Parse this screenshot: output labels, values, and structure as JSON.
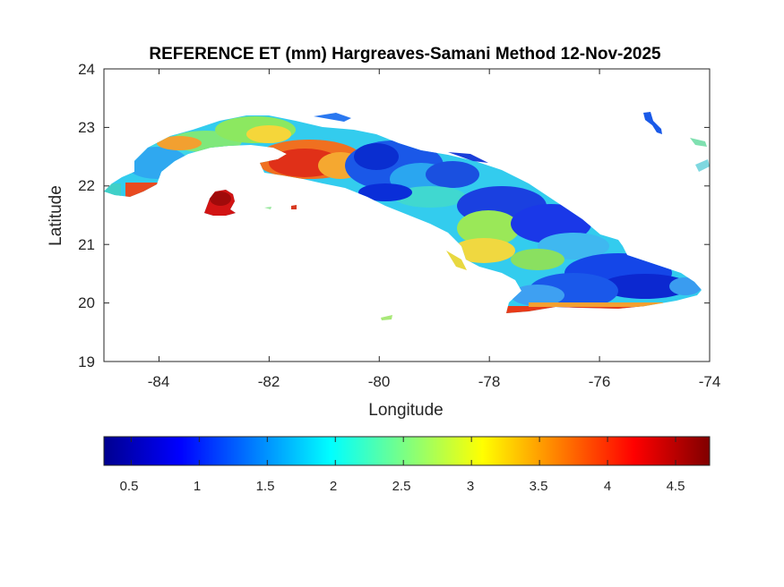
{
  "map": {
    "title": "REFERENCE ET (mm) Hargreaves-Samani Method  12-Nov-2025",
    "xlabel": "Longitude",
    "ylabel": "Latitude",
    "xlim": [
      -85,
      -74
    ],
    "ylim": [
      19,
      24
    ],
    "x_ticks": [
      "-84",
      "-82",
      "-80",
      "-78",
      "-76",
      "-74"
    ],
    "x_tick_values": [
      -84,
      -82,
      -80,
      -78,
      -76,
      -74
    ],
    "y_ticks": [
      "19",
      "20",
      "21",
      "22",
      "23",
      "24"
    ],
    "y_tick_values": [
      19,
      20,
      21,
      22,
      23,
      24
    ],
    "colorbar": {
      "colormap": "jet",
      "range": [
        0.3,
        4.75
      ],
      "ticks": [
        "0.5",
        "1",
        "1.5",
        "2",
        "2.5",
        "3",
        "3.5",
        "4",
        "4.5"
      ],
      "tick_values": [
        0.5,
        1,
        1.5,
        2,
        2.5,
        3,
        3.5,
        4,
        4.5
      ],
      "placement": "bottom"
    }
  }
}
